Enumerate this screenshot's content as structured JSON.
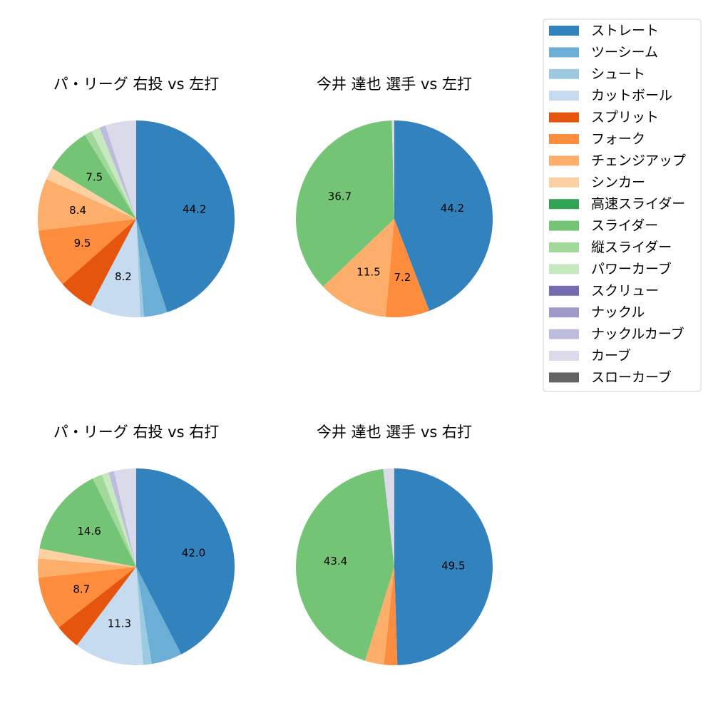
{
  "legend": {
    "placement": "top-right",
    "entries": [
      {
        "name": "ストレート",
        "color": "#3182bd"
      },
      {
        "name": "ツーシーム",
        "color": "#6baed6"
      },
      {
        "name": "シュート",
        "color": "#9ecae1"
      },
      {
        "name": "カットボール",
        "color": "#c6dbef"
      },
      {
        "name": "スプリット",
        "color": "#e6550d"
      },
      {
        "name": "フォーク",
        "color": "#fd8d3c"
      },
      {
        "name": "チェンジアップ",
        "color": "#fdae6b"
      },
      {
        "name": "シンカー",
        "color": "#fdd0a2"
      },
      {
        "name": "高速スライダー",
        "color": "#31a354"
      },
      {
        "name": "スライダー",
        "color": "#74c476"
      },
      {
        "name": "縦スライダー",
        "color": "#a1d99b"
      },
      {
        "name": "パワーカーブ",
        "color": "#c7e9c0"
      },
      {
        "name": "スクリュー",
        "color": "#756bb1"
      },
      {
        "name": "ナックル",
        "color": "#9e9ac8"
      },
      {
        "name": "ナックルカーブ",
        "color": "#bcbddc"
      },
      {
        "name": "カーブ",
        "color": "#dadaeb"
      },
      {
        "name": "スローカーブ",
        "color": "#636363"
      }
    ]
  },
  "chart_data": [
    {
      "type": "pie",
      "title": "パ・リーグ 右投 vs 左打",
      "labels": [
        "ストレート",
        "ツーシーム",
        "シュート",
        "カットボール",
        "スプリット",
        "フォーク",
        "チェンジアップ",
        "シンカー",
        "高速スライダー",
        "スライダー",
        "縦スライダー",
        "パワーカーブ",
        "スクリュー",
        "ナックル",
        "ナックルカーブ",
        "カーブ",
        "スローカーブ"
      ],
      "values": [
        44.2,
        3.8,
        0.6,
        8.2,
        5.7,
        9.5,
        8.4,
        2.0,
        0.0,
        7.5,
        1.2,
        1.4,
        0.0,
        0.0,
        1.0,
        5.0,
        0.0
      ]
    },
    {
      "type": "pie",
      "title": "今井 達也 選手 vs 左打",
      "labels": [
        "ストレート",
        "ツーシーム",
        "シュート",
        "カットボール",
        "スプリット",
        "フォーク",
        "チェンジアップ",
        "シンカー",
        "高速スライダー",
        "スライダー",
        "縦スライダー",
        "パワーカーブ",
        "スクリュー",
        "ナックル",
        "ナックルカーブ",
        "カーブ",
        "スローカーブ"
      ],
      "values": [
        44.2,
        0.0,
        0.0,
        0.0,
        0.0,
        7.2,
        11.5,
        0.0,
        0.0,
        36.7,
        0.0,
        0.0,
        0.0,
        0.0,
        0.0,
        0.4,
        0.0
      ]
    },
    {
      "type": "pie",
      "title": "パ・リーグ 右投 vs 右打",
      "labels": [
        "ストレート",
        "ツーシーム",
        "シュート",
        "カットボール",
        "スプリット",
        "フォーク",
        "チェンジアップ",
        "シンカー",
        "高速スライダー",
        "スライダー",
        "縦スライダー",
        "パワーカーブ",
        "スクリュー",
        "ナックル",
        "ナックルカーブ",
        "カーブ",
        "スローカーブ"
      ],
      "values": [
        42.0,
        5.0,
        1.4,
        11.3,
        4.1,
        8.7,
        3.1,
        1.6,
        0.0,
        14.6,
        1.6,
        1.1,
        0.0,
        0.0,
        0.9,
        3.6,
        0.0
      ]
    },
    {
      "type": "pie",
      "title": "今井 達也 選手 vs 右打",
      "labels": [
        "ストレート",
        "ツーシーム",
        "シュート",
        "カットボール",
        "スプリット",
        "フォーク",
        "チェンジアップ",
        "シンカー",
        "高速スライダー",
        "スライダー",
        "縦スライダー",
        "パワーカーブ",
        "スクリュー",
        "ナックル",
        "ナックルカーブ",
        "カーブ",
        "スローカーブ"
      ],
      "values": [
        49.5,
        0.0,
        0.0,
        0.0,
        0.0,
        2.2,
        3.1,
        0.0,
        0.0,
        43.4,
        0.0,
        0.0,
        0.0,
        0.0,
        0.0,
        1.8,
        0.0
      ]
    }
  ]
}
